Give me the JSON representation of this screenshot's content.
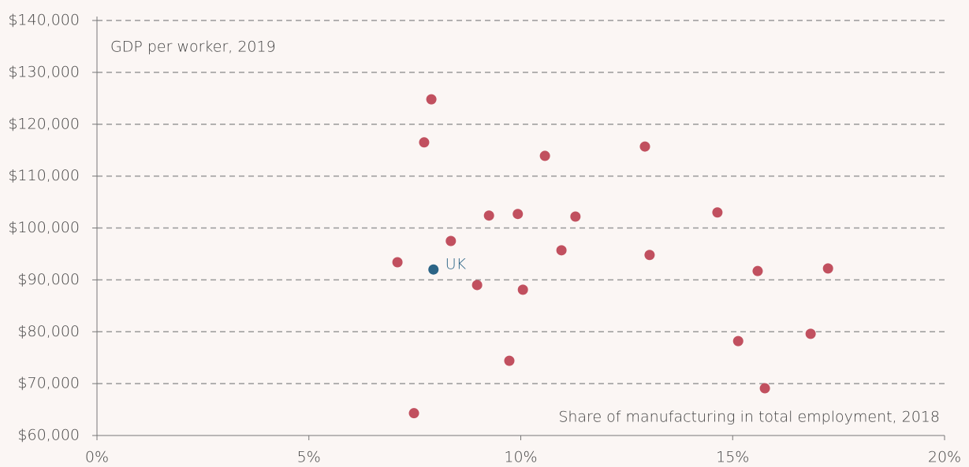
{
  "chart_data": {
    "type": "scatter",
    "y_label": "GDP per worker, 2019",
    "x_label": "Share of manufacturing in total employment, 2018",
    "xlim": [
      0,
      20
    ],
    "ylim": [
      60000,
      140000
    ],
    "xticks": [
      {
        "value": 0,
        "label": "0%"
      },
      {
        "value": 5,
        "label": "5%"
      },
      {
        "value": 10,
        "label": "10%"
      },
      {
        "value": 15,
        "label": "15%"
      },
      {
        "value": 20,
        "label": "20%"
      }
    ],
    "yticks": [
      {
        "value": 60000,
        "label": "$60,000"
      },
      {
        "value": 70000,
        "label": "$70,000"
      },
      {
        "value": 80000,
        "label": "$80,000"
      },
      {
        "value": 90000,
        "label": "$90,000"
      },
      {
        "value": 100000,
        "label": "$100,000"
      },
      {
        "value": 110000,
        "label": "$110,000"
      },
      {
        "value": 120000,
        "label": "$120,000"
      },
      {
        "value": 130000,
        "label": "$130,000"
      },
      {
        "value": 140000,
        "label": "$140,000"
      }
    ],
    "grid": true,
    "series": [
      {
        "color": "#c1505f",
        "x": [
          7.89,
          7.72,
          10.57,
          12.93,
          9.25,
          9.93,
          11.29,
          14.64,
          8.35,
          10.96,
          13.04,
          7.09,
          15.59,
          17.25,
          8.97,
          10.05,
          15.13,
          16.84,
          9.73,
          15.76,
          7.48
        ],
        "values": [
          124800,
          116500,
          113900,
          115700,
          102400,
          102700,
          102200,
          103000,
          97500,
          95700,
          94800,
          93400,
          91700,
          92200,
          89000,
          88100,
          78200,
          79600,
          74400,
          69100,
          64300
        ]
      },
      {
        "name": "UK",
        "color": "#2b6486",
        "x": [
          7.94
        ],
        "values": [
          92000
        ]
      }
    ]
  }
}
